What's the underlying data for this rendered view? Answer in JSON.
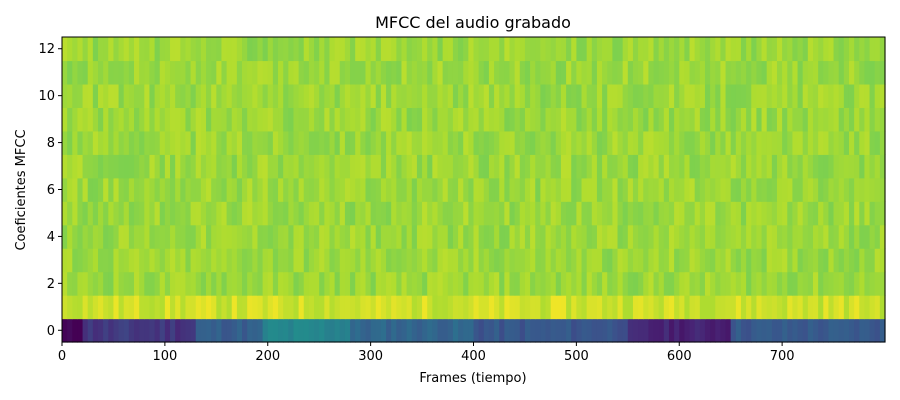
{
  "chart_data": {
    "type": "heatmap",
    "title": "MFCC del audio grabado",
    "xlabel": "Frames (tiempo)",
    "ylabel": "Coeficientes MFCC",
    "xlim": [
      0,
      799
    ],
    "ylim": [
      -0.5,
      12.5
    ],
    "x_ticks": [
      0,
      100,
      200,
      300,
      400,
      500,
      600,
      700
    ],
    "y_ticks": [
      0,
      2,
      4,
      6,
      8,
      10,
      12
    ],
    "colormap": "viridis",
    "n_frames": 800,
    "n_coefficients": 13,
    "grid": false,
    "coefficient_0_segments": [
      {
        "frames": [
          0,
          20
        ],
        "level": 0.0
      },
      {
        "frames": [
          20,
          130
        ],
        "level": 0.18
      },
      {
        "frames": [
          130,
          195
        ],
        "level": 0.3
      },
      {
        "frames": [
          195,
          280
        ],
        "level": 0.45
      },
      {
        "frames": [
          280,
          400
        ],
        "level": 0.33
      },
      {
        "frames": [
          400,
          550
        ],
        "level": 0.27
      },
      {
        "frames": [
          550,
          650
        ],
        "level": 0.12
      },
      {
        "frames": [
          650,
          800
        ],
        "level": 0.28
      }
    ],
    "coefficient_1_level": 0.93,
    "coefficients_2_to_12_level": 0.86,
    "colors": {
      "low": "#440154",
      "mid": "#21918c",
      "high": "#fde725"
    }
  }
}
